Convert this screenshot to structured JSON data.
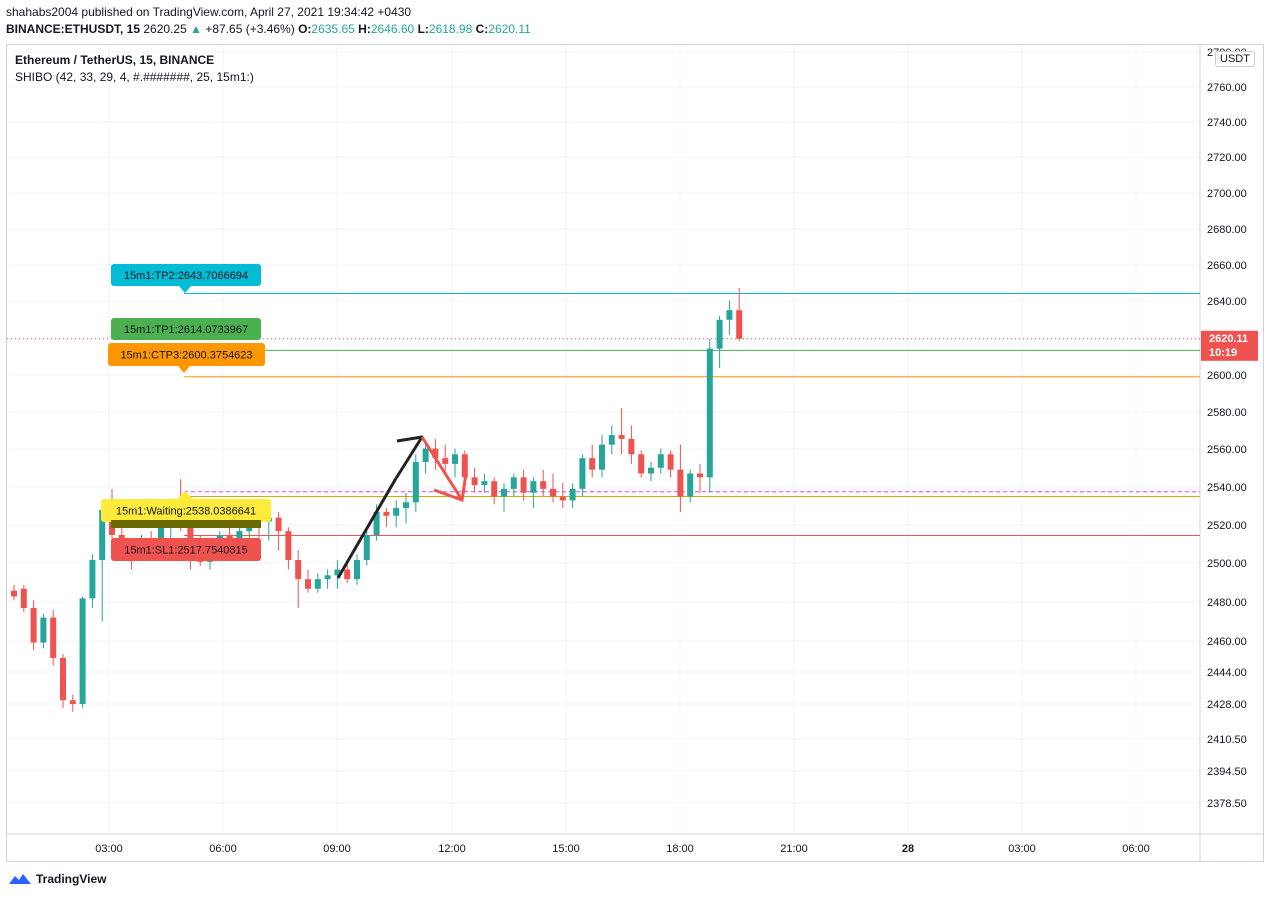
{
  "header": {
    "publisher_line": "shahabs2004 published on TradingView.com, April 27, 2021 19:34:42 +0430",
    "symbol": "BINANCE:ETHUSDT, 15",
    "last": "2620.25",
    "change": "+87.65 (+3.46%)",
    "o_label": "O:",
    "o_value": "2635.65",
    "h_label": "H:",
    "h_value": "2646.60",
    "l_label": "L:",
    "l_value": "2618.98",
    "c_label": "C:",
    "c_value": "2620.11"
  },
  "legend": {
    "title": "Ethereum / TetherUS, 15, BINANCE",
    "indicator": "SHIBO (42, 33, 29, 4, #.#######, 25, 15m1:)"
  },
  "currency": "USDT",
  "brand": "TradingView",
  "colors": {
    "up": "#26a69a",
    "down": "#ef5350",
    "tp2": "#00bcd4",
    "tp1": "#4caf50",
    "ctp3": "#ff9800",
    "waiting": "#ffeb3b",
    "sl": "#ef5350",
    "grid": "#f0f3fa"
  },
  "chart_data": {
    "type": "candlestick",
    "y_ticks": [
      "2780.00",
      "2760.00",
      "2740.00",
      "2720.00",
      "2700.00",
      "2680.00",
      "2660.00",
      "2640.00",
      "2620.00",
      "2600.00",
      "2580.00",
      "2560.00",
      "2540.00",
      "2520.00",
      "2500.00",
      "2480.00",
      "2460.00",
      "2444.00",
      "2428.00",
      "2410.50",
      "2394.50",
      "2378.50"
    ],
    "x_ticks": [
      "03:00",
      "06:00",
      "09:00",
      "12:00",
      "15:00",
      "18:00",
      "21:00",
      "28",
      "03:00",
      "06:00"
    ],
    "current_price": "2620.11",
    "countdown": "10:19",
    "levels": [
      {
        "label": "15m1:TP2:2643.7066694",
        "price": 2643.7066694,
        "color": "tp2"
      },
      {
        "label": "15m1:TP1:2614.0733967",
        "price": 2614.0733967,
        "color": "tp1"
      },
      {
        "label": "15m1:CTP3:2600.3754623",
        "price": 2600.3754623,
        "color": "ctp3"
      },
      {
        "label": "15m1:Waiting:2538.0386641",
        "price": 2538.0386641,
        "color": "waiting"
      },
      {
        "label": "15m1:SL1:2517.7540815",
        "price": 2517.7540815,
        "color": "sl"
      }
    ],
    "candles": [
      [
        2489,
        2492,
        2484,
        2486
      ],
      [
        2490,
        2492,
        2478,
        2480
      ],
      [
        2480,
        2484,
        2458,
        2462
      ],
      [
        2462,
        2477,
        2459,
        2475
      ],
      [
        2475,
        2479,
        2450,
        2454
      ],
      [
        2454,
        2456,
        2428,
        2432
      ],
      [
        2432,
        2435,
        2426,
        2430
      ],
      [
        2430,
        2486,
        2428,
        2485
      ],
      [
        2485,
        2508,
        2480,
        2505
      ],
      [
        2505,
        2535,
        2473,
        2531
      ],
      [
        2531,
        2542,
        2516,
        2518
      ],
      [
        2518,
        2532,
        2510,
        2513
      ],
      [
        2513,
        2515,
        2500,
        2508
      ],
      [
        2508,
        2518,
        2505,
        2515
      ],
      [
        2515,
        2520,
        2510,
        2512
      ],
      [
        2512,
        2528,
        2508,
        2525
      ],
      [
        2525,
        2535,
        2515,
        2532
      ],
      [
        2532,
        2547,
        2520,
        2526
      ],
      [
        2526,
        2532,
        2500,
        2508
      ],
      [
        2508,
        2518,
        2502,
        2504
      ],
      [
        2504,
        2516,
        2500,
        2512
      ],
      [
        2512,
        2520,
        2505,
        2518
      ],
      [
        2518,
        2522,
        2506,
        2510
      ],
      [
        2510,
        2522,
        2505,
        2520
      ],
      [
        2520,
        2534,
        2514,
        2530
      ],
      [
        2530,
        2532,
        2516,
        2525
      ],
      [
        2525,
        2530,
        2515,
        2527
      ],
      [
        2527,
        2530,
        2510,
        2520
      ],
      [
        2520,
        2522,
        2500,
        2505
      ],
      [
        2505,
        2510,
        2480,
        2495
      ],
      [
        2495,
        2500,
        2488,
        2490
      ],
      [
        2490,
        2498,
        2488,
        2495
      ],
      [
        2495,
        2500,
        2490,
        2497
      ],
      [
        2497,
        2505,
        2490,
        2500
      ],
      [
        2500,
        2504,
        2493,
        2495
      ],
      [
        2495,
        2508,
        2492,
        2505
      ],
      [
        2505,
        2520,
        2502,
        2518
      ],
      [
        2518,
        2534,
        2515,
        2530
      ],
      [
        2530,
        2532,
        2522,
        2528
      ],
      [
        2528,
        2536,
        2522,
        2532
      ],
      [
        2532,
        2540,
        2524,
        2535
      ],
      [
        2535,
        2560,
        2530,
        2556
      ],
      [
        2556,
        2566,
        2550,
        2563
      ],
      [
        2563,
        2568,
        2552,
        2558
      ],
      [
        2558,
        2565,
        2550,
        2555
      ],
      [
        2555,
        2563,
        2548,
        2560
      ],
      [
        2560,
        2562,
        2540,
        2548
      ],
      [
        2548,
        2553,
        2540,
        2544
      ],
      [
        2544,
        2550,
        2540,
        2546
      ],
      [
        2546,
        2548,
        2534,
        2538
      ],
      [
        2538,
        2545,
        2530,
        2542
      ],
      [
        2542,
        2550,
        2538,
        2548
      ],
      [
        2548,
        2552,
        2536,
        2540
      ],
      [
        2540,
        2548,
        2532,
        2546
      ],
      [
        2546,
        2552,
        2538,
        2542
      ],
      [
        2542,
        2550,
        2535,
        2538
      ],
      [
        2538,
        2545,
        2532,
        2536
      ],
      [
        2536,
        2545,
        2532,
        2542
      ],
      [
        2542,
        2560,
        2538,
        2558
      ],
      [
        2558,
        2565,
        2548,
        2552
      ],
      [
        2552,
        2570,
        2548,
        2565
      ],
      [
        2565,
        2575,
        2560,
        2570
      ],
      [
        2570,
        2584,
        2560,
        2568
      ],
      [
        2568,
        2575,
        2555,
        2560
      ],
      [
        2560,
        2562,
        2548,
        2550
      ],
      [
        2550,
        2556,
        2546,
        2553
      ],
      [
        2553,
        2563,
        2550,
        2560
      ],
      [
        2560,
        2562,
        2548,
        2552
      ],
      [
        2552,
        2565,
        2530,
        2538
      ],
      [
        2538,
        2552,
        2535,
        2550
      ],
      [
        2550,
        2555,
        2540,
        2548
      ],
      [
        2548,
        2620,
        2540,
        2615
      ],
      [
        2615,
        2632,
        2605,
        2630
      ],
      [
        2630,
        2640,
        2622,
        2635
      ],
      [
        2635,
        2646.6,
        2618.98,
        2620.11
      ]
    ],
    "ylim": [
      2370,
      2790
    ]
  }
}
